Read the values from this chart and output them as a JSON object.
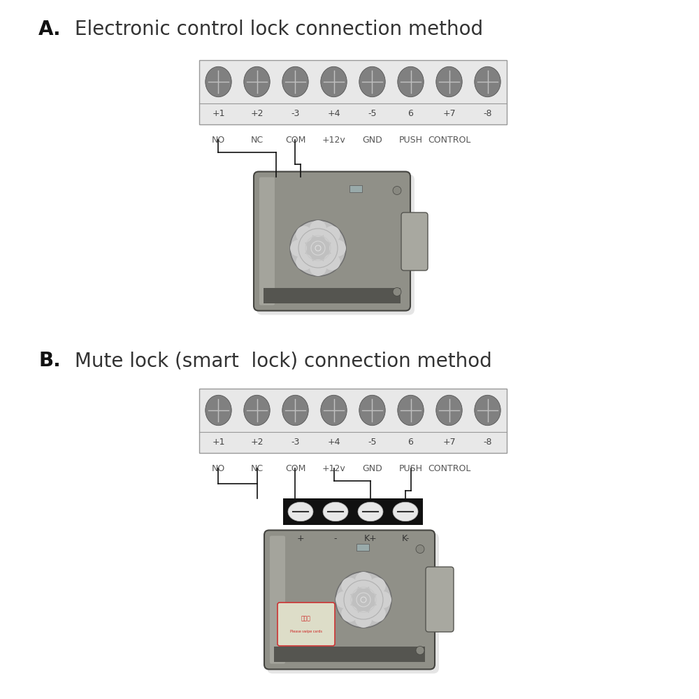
{
  "bg_color": "#ffffff",
  "title_a": "A.",
  "title_a_text": " Electronic control lock connection method",
  "title_b": "B.",
  "title_b_text": " Mute lock (smart  lock) connection method",
  "terminal_labels": [
    "+1",
    "+2",
    "-3",
    "+4",
    "-5",
    "6",
    "+7",
    "-8"
  ],
  "terminal_names": [
    "NO",
    "NC",
    "COM",
    "+12v",
    "GND",
    "PUSH",
    "CONTROL"
  ],
  "connector_labels": [
    "+",
    "-",
    "K+",
    "K-"
  ],
  "wire_color": "#111111",
  "screw_face_color": "#808080",
  "screw_edge_color": "#555555",
  "box_fill": "#e8e8e8",
  "box_border": "#999999",
  "lock_body_color": "#8a8a82",
  "lock_edge_color": "#555550",
  "lock_knob_color": "#d0d0d0",
  "lock_latch_color": "#aaaaaa",
  "font_size_title": 20,
  "font_size_num": 9,
  "font_size_name": 9,
  "font_size_conn": 9
}
